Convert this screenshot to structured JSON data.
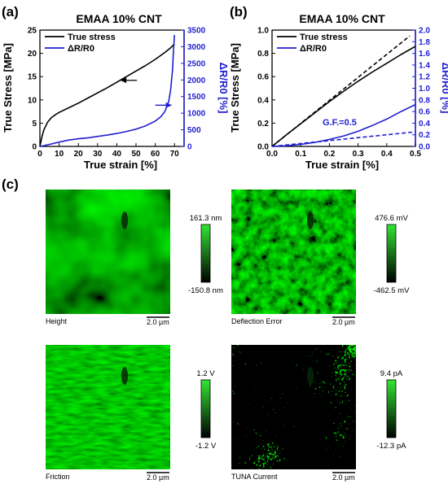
{
  "panels": {
    "a": "(a)",
    "b": "(b)",
    "c": "(c)"
  },
  "chart_data": [
    {
      "type": "line",
      "title": "EMAA 10% CNT",
      "xlabel": "True strain [%]",
      "ylabel": "True Stress [MPa]",
      "ylabel2": "ΔR/R0 [%]",
      "xlim": [
        0,
        75
      ],
      "ylim": [
        0,
        25
      ],
      "ylim2": [
        0,
        3500
      ],
      "xticks": [
        0,
        10,
        20,
        30,
        40,
        50,
        60,
        70
      ],
      "yticks": [
        0,
        5,
        10,
        15,
        20,
        25
      ],
      "yticks2": [
        0,
        500,
        1000,
        1500,
        2000,
        2500,
        3000,
        3500
      ],
      "legend": [
        "True stress",
        "ΔR/R0"
      ],
      "series": [
        {
          "name": "True stress",
          "axis": "left",
          "color": "#000000",
          "x": [
            0,
            1,
            2,
            4,
            6,
            8,
            10,
            15,
            20,
            25,
            30,
            35,
            40,
            45,
            50,
            55,
            60,
            65,
            68,
            70
          ],
          "y": [
            0,
            2.0,
            3.5,
            5.2,
            6.2,
            6.8,
            7.3,
            8.3,
            9.3,
            10.4,
            11.5,
            12.6,
            13.8,
            15.0,
            16.2,
            17.4,
            18.7,
            20.2,
            21.2,
            22.0
          ]
        },
        {
          "name": "ΔR/R0",
          "axis": "right",
          "color": "#1f1fd0",
          "x": [
            0,
            2,
            5,
            10,
            15,
            20,
            25,
            30,
            35,
            40,
            45,
            50,
            55,
            60,
            63,
            65,
            67,
            68,
            69,
            69.5,
            70
          ],
          "y": [
            0,
            20,
            60,
            130,
            190,
            230,
            260,
            300,
            340,
            390,
            450,
            520,
            620,
            760,
            900,
            1050,
            1350,
            1700,
            2300,
            2900,
            3350
          ]
        }
      ]
    },
    {
      "type": "line",
      "title": "EMAA 10% CNT",
      "xlabel": "True strain [%]",
      "ylabel": "True Stress [MPa]",
      "ylabel2": "ΔR/R0 [%]",
      "xlim": [
        0,
        0.5
      ],
      "ylim": [
        0,
        1.0
      ],
      "ylim2": [
        0,
        2.0
      ],
      "xticks": [
        0.0,
        0.1,
        0.2,
        0.3,
        0.4,
        0.5
      ],
      "yticks": [
        0.0,
        0.2,
        0.4,
        0.6,
        0.8,
        1.0
      ],
      "yticks2": [
        0.0,
        0.2,
        0.4,
        0.6,
        0.8,
        1.0,
        1.2,
        1.4,
        1.6,
        1.8,
        2.0
      ],
      "legend": [
        "True stress",
        "ΔR/R0"
      ],
      "annotations": [
        "G.F.=0.5"
      ],
      "series": [
        {
          "name": "True stress",
          "axis": "left",
          "color": "#000000",
          "x": [
            0,
            0.05,
            0.1,
            0.15,
            0.2,
            0.25,
            0.3,
            0.35,
            0.4,
            0.45,
            0.5
          ],
          "y": [
            0,
            0.1,
            0.195,
            0.29,
            0.385,
            0.475,
            0.56,
            0.64,
            0.715,
            0.79,
            0.86
          ]
        },
        {
          "name": "",
          "axis": "left",
          "color": "#000000",
          "dashed": true,
          "x": [
            0,
            0.48
          ],
          "y": [
            0,
            0.95
          ]
        },
        {
          "name": "ΔR/R0",
          "axis": "right",
          "color": "#1f1fd0",
          "x": [
            0,
            0.05,
            0.1,
            0.15,
            0.2,
            0.25,
            0.3,
            0.35,
            0.4,
            0.45,
            0.5
          ],
          "y": [
            0,
            0.01,
            0.035,
            0.07,
            0.12,
            0.18,
            0.26,
            0.36,
            0.47,
            0.6,
            0.72
          ]
        },
        {
          "name": "",
          "axis": "right",
          "color": "#1f1fd0",
          "dashed": true,
          "x": [
            0,
            0.5
          ],
          "y": [
            0,
            0.25
          ]
        }
      ]
    }
  ],
  "afm_images": [
    {
      "caption": "Height",
      "scale_bar": "2.0 µm",
      "cb_max": "161.3 nm",
      "cb_min": "-150.8 nm",
      "texture": "height"
    },
    {
      "caption": "Deflection Error",
      "scale_bar": "2.0 µm",
      "cb_max": "476.6 mV",
      "cb_min": "-462.5 mV",
      "texture": "deflection"
    },
    {
      "caption": "Friction",
      "scale_bar": "2.0 µm",
      "cb_max": "1.2 V",
      "cb_min": "-1.2 V",
      "texture": "friction"
    },
    {
      "caption": "TUNA Current",
      "scale_bar": "2.0 µm",
      "cb_max": "9.4 pA",
      "cb_min": "-12.3 pA",
      "texture": "tuna"
    }
  ],
  "colors": {
    "stress": "#000000",
    "resistance": "#1f1fd0",
    "afm_green": "#33dd33"
  }
}
